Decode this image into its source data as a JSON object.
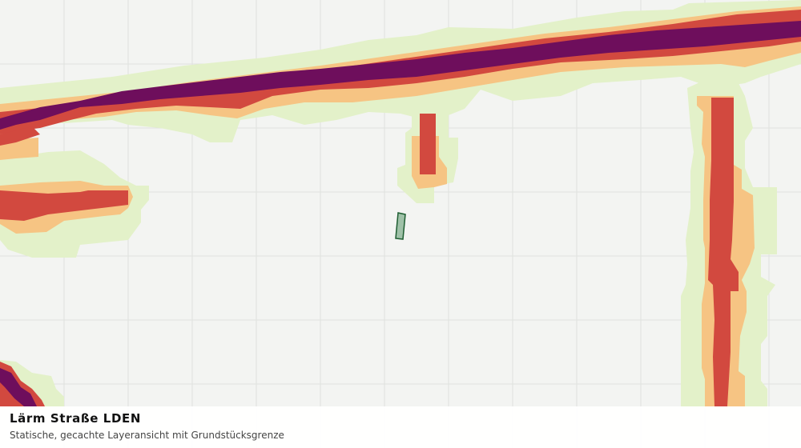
{
  "caption": {
    "title": "Lärm Straße LDEN",
    "subtitle": "Statische, gecachte Layeransicht mit Grundstücksgrenze"
  },
  "legend_colors": {
    "very_high": "#6e0e5c",
    "high": "#d2493f",
    "medium": "#f6c483",
    "low": "#e3f1c9",
    "grid": "#dfe1de",
    "background": "#f3f4f2",
    "parcel_fill": "#9fc1a8",
    "parcel_stroke": "#1e5e32"
  }
}
